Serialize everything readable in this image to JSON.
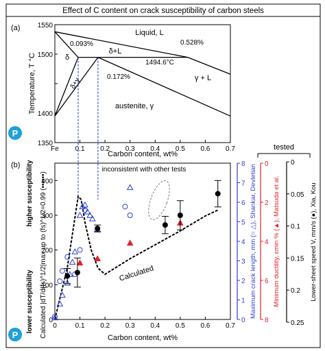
{
  "figure": {
    "title": "Effect of C content on crack susceptibility of carbon steels",
    "logo_text": "P"
  },
  "colors": {
    "black": "#000000",
    "blue": "#2a3fcf",
    "red": "#e0202a",
    "dashed_blue": "#2a3fcf",
    "grey": "#7a7a7a",
    "logo": "#1fa0d8"
  },
  "chart_data": [
    {
      "type": "line",
      "panel": "(a)",
      "xlabel": "Carbon content, wt%",
      "ylabel": "Temperature, T °C",
      "xlim": [
        0,
        0.7
      ],
      "ylim": [
        1350,
        1550
      ],
      "x_ticks": [
        0,
        0.1,
        0.2,
        0.3,
        0.4,
        0.5,
        0.6,
        0.7
      ],
      "x_tick_labels": [
        "Fe",
        "0.1",
        "0.2",
        "0.3",
        "0.4",
        "0.5",
        "0.6",
        "0.7"
      ],
      "y_ticks": [
        1350,
        1400,
        1450,
        1500,
        1550
      ],
      "y_tick_labels": [
        "1350",
        "1400",
        "",
        "1500",
        "1550"
      ],
      "phase_lines": [
        {
          "name": "liquidus-delta",
          "points": [
            [
              0,
              1538
            ],
            [
              0.53,
              1494.6
            ]
          ]
        },
        {
          "name": "liquidus-gamma",
          "points": [
            [
              0.53,
              1494.6
            ],
            [
              0.7,
              1466
            ]
          ]
        },
        {
          "name": "peritectic-isotherm",
          "points": [
            [
              0.093,
              1494.6
            ],
            [
              0.53,
              1494.6
            ]
          ]
        },
        {
          "name": "delta-solidus",
          "points": [
            [
              0,
              1538
            ],
            [
              0.093,
              1494.6
            ]
          ]
        },
        {
          "name": "gamma-solidus",
          "points": [
            [
              0.172,
              1494.6
            ],
            [
              0.7,
              1395
            ]
          ]
        },
        {
          "name": "delta-gamma-upper",
          "points": [
            [
              0.093,
              1494.6
            ],
            [
              0,
              1395
            ]
          ]
        },
        {
          "name": "delta-gamma-lower",
          "points": [
            [
              0.172,
              1494.6
            ],
            [
              0,
              1395
            ]
          ]
        }
      ],
      "guide_lines_x": [
        0.093,
        0.172
      ],
      "annotations": {
        "liquid": "Liquid, L",
        "delta_L": "δ+L",
        "delta": "δ",
        "delta_gamma": "δ+γ",
        "gamma_L": "γ + L",
        "austenite": "austenite, γ",
        "peritectic_temp": "1494.6°C",
        "c1": "0.093%",
        "c2": "0.172%",
        "c3": "0.528%"
      }
    },
    {
      "type": "scatter",
      "panel": "(b)",
      "xlabel": "Carbon content, wt%",
      "ylabel": "Calculated |dT/d(fs)^1/2|max up to (fs)^1/2=0.99 (••••••)",
      "ylabel_top": "higher susceptibility",
      "ylabel_bottom": "lower susceptibility",
      "xlim": [
        0,
        0.7
      ],
      "ylim": [
        0,
        450
      ],
      "x_ticks": [
        0,
        0.1,
        0.2,
        0.3,
        0.4,
        0.5,
        0.6,
        0.7
      ],
      "x_tick_labels": [
        "0",
        "0.1",
        "0.2",
        "0.3",
        "0.4",
        "0.5",
        "0.6",
        "0.7"
      ],
      "y_ticks": [
        0,
        100,
        200,
        300,
        400
      ],
      "y_tick_labels": [
        "0",
        "100",
        "200",
        "300",
        "400"
      ],
      "calculated_curve": {
        "name": "Calculated",
        "x": [
          0.0,
          0.05,
          0.093,
          0.105,
          0.12,
          0.145,
          0.172,
          0.2,
          0.3,
          0.4,
          0.5,
          0.6,
          0.65
        ],
        "y": [
          0,
          150,
          355,
          345,
          280,
          200,
          148,
          130,
          175,
          215,
          255,
          298,
          315
        ]
      },
      "shankar_triangles": {
        "x": [
          0.0,
          0.02,
          0.03,
          0.05,
          0.06,
          0.07,
          0.08,
          0.1,
          0.11,
          0.12,
          0.13,
          0.14,
          0.15,
          0.17,
          0.3
        ],
        "y": [
          5,
          45,
          70,
          105,
          130,
          165,
          195,
          300,
          325,
          330,
          310,
          300,
          290,
          260,
          380
        ]
      },
      "devletian_circles": {
        "x": [
          0.0,
          0.02,
          0.03,
          0.05,
          0.08,
          0.1,
          0.12,
          0.28,
          0.3
        ],
        "y": [
          8,
          110,
          140,
          180,
          130,
          200,
          315,
          325,
          300
        ]
      },
      "matsuda_red_triangles": {
        "x": [
          0.1,
          0.17,
          0.3,
          0.5
        ],
        "y": [
          163,
          175,
          220,
          278
        ]
      },
      "xia_kou_filled": {
        "x": [
          0.05,
          0.09,
          0.17,
          0.44,
          0.5,
          0.65
        ],
        "y": [
          125,
          135,
          262,
          272,
          300,
          362
        ],
        "err": [
          22,
          42,
          10,
          25,
          42,
          38
        ]
      },
      "annotations": {
        "inconsistent": "inconsistent with other tests",
        "calculated": "Calculated"
      },
      "right_axes": [
        {
          "label": "Maximum crack length, mm (○ △), Shankar, Devletian",
          "color": "#2a3fcf",
          "lim": [
            0,
            8
          ],
          "ticks": [
            0,
            1,
            2,
            3,
            4,
            5,
            6,
            7,
            8
          ],
          "direction": "up"
        },
        {
          "label": "Minimum ductility, εmin % (▲), Matsuda et al.",
          "color": "#e0202a",
          "lim": [
            0,
            8
          ],
          "ticks": [
            0,
            2,
            4,
            6,
            8
          ],
          "direction": "down"
        },
        {
          "label": "Lower-sheet speed V, mm/s (●), Xia, Kou",
          "color": "#000000",
          "lim": [
            0,
            0.25
          ],
          "ticks": [
            0,
            0.05,
            0.1,
            0.15,
            0.2,
            0.25
          ],
          "direction": "down",
          "header": "tested"
        }
      ]
    }
  ]
}
